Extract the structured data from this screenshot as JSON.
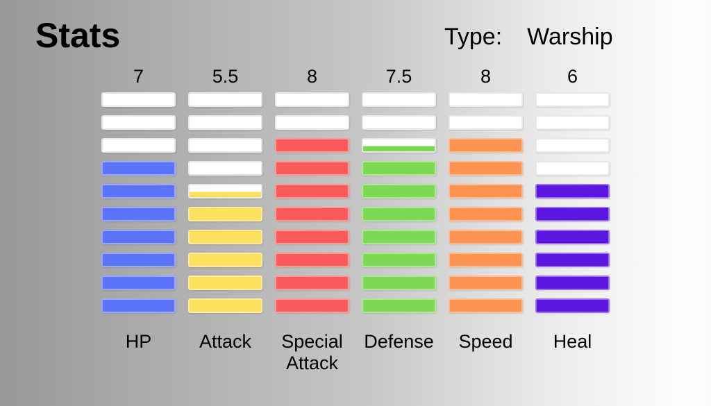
{
  "header": {
    "title": "Stats",
    "type_label": "Type:",
    "type_value": "Warship"
  },
  "chart_data": {
    "type": "bar",
    "title": "Stats",
    "subtitle": "Type: Warship",
    "categories": [
      "HP",
      "Attack",
      "Special Attack",
      "Defense",
      "Speed",
      "Heal"
    ],
    "values": [
      7,
      5.5,
      8,
      7.5,
      8,
      6
    ],
    "value_labels": [
      "7",
      "5.5",
      "8",
      "7.5",
      "8",
      "6"
    ],
    "ylim": [
      0,
      10
    ],
    "segments_per_column": 10,
    "bar_colors": [
      "#5A73F7",
      "#FCE05E",
      "#FA5A5A",
      "#7DD955",
      "#FC9350",
      "#5B16DF"
    ],
    "bar_color_names": [
      "blue",
      "yellow",
      "red",
      "green",
      "orange",
      "purple"
    ],
    "empty_segment_color": "#FFFFFF",
    "legend_position": "none",
    "grid": false
  }
}
